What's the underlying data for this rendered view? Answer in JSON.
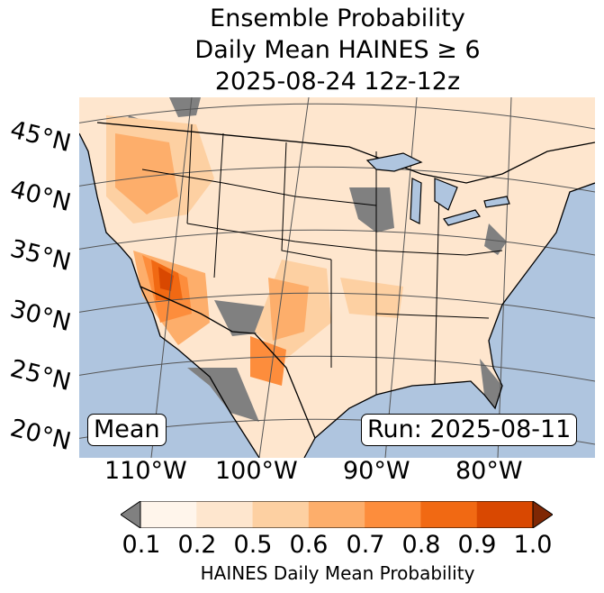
{
  "title": {
    "line1": "Ensemble Probability",
    "line2": "Daily Mean HAINES ≥ 6",
    "line3": "2025-08-24 12z-12z"
  },
  "map": {
    "lat_labels": [
      "45°N",
      "40°N",
      "35°N",
      "30°N",
      "25°N",
      "20°N"
    ],
    "lon_labels": [
      "110°W",
      "100°W",
      "90°W",
      "80°W"
    ],
    "colors": {
      "ocean": "#afc5df",
      "land_missing": "#808080",
      "border": "#000000",
      "graticule": "#555555"
    }
  },
  "annotations": {
    "stat_label": "Mean",
    "run_label": "Run: 2025-08-11"
  },
  "colorbar": {
    "ticks": [
      "0.1",
      "0.2",
      "0.5",
      "0.6",
      "0.7",
      "0.8",
      "0.9",
      "1.0"
    ],
    "colors": [
      "#fff5eb",
      "#fee6ce",
      "#fdd0a2",
      "#fdae6b",
      "#fd8d3c",
      "#f16913",
      "#d94801",
      "#a63603"
    ],
    "under_color": "#808080",
    "over_color": "#7f2704",
    "label": "HAINES Daily Mean Probability"
  }
}
